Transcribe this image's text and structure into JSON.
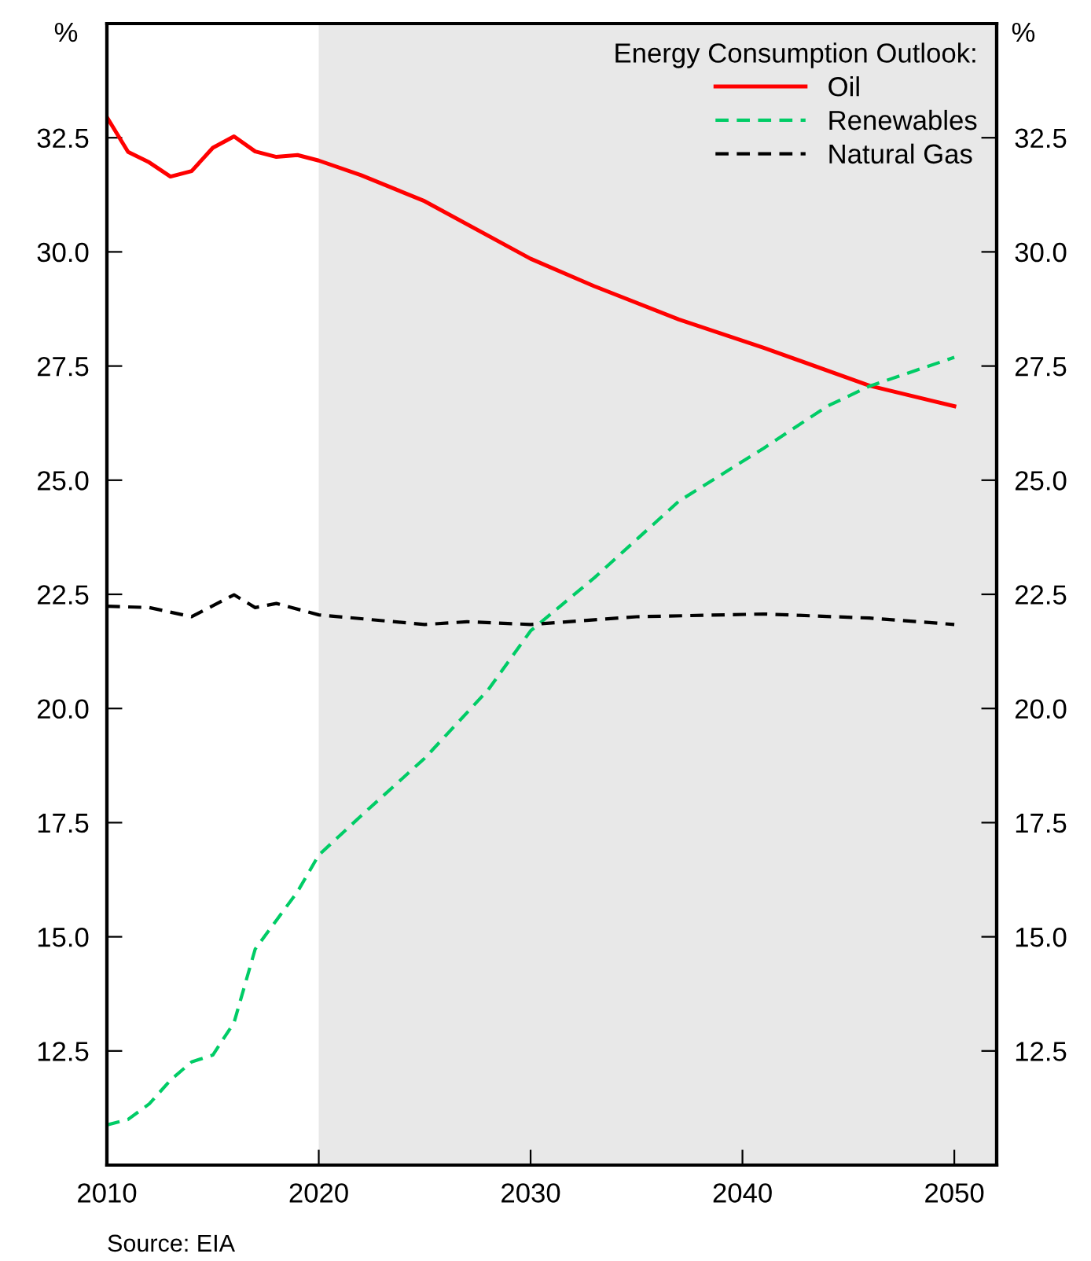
{
  "chart_data": {
    "type": "line",
    "ylabel": "%",
    "y2label": "%",
    "legend_title": "Energy Consumption Outlook:",
    "series": [
      {
        "name": "Oil",
        "color": "#ff0000",
        "line_style": "solid",
        "x": [
          2010,
          2011,
          2012,
          2013,
          2014,
          2015,
          2016,
          2017,
          2018,
          2019,
          2020,
          2022,
          2025,
          2030,
          2033,
          2037,
          2041,
          2046,
          2050
        ],
        "values": [
          32.95,
          32.19,
          31.96,
          31.65,
          31.77,
          32.28,
          32.53,
          32.2,
          32.08,
          32.12,
          32.0,
          31.68,
          31.11,
          29.85,
          29.25,
          28.52,
          27.9,
          27.07,
          26.62
        ]
      },
      {
        "name": "Renewables",
        "color": "#00cc66",
        "line_style": "dashed",
        "x": [
          2010,
          2011,
          2012,
          2013,
          2014,
          2015,
          2016,
          2017,
          2018,
          2019,
          2020,
          2022,
          2025,
          2028,
          2030,
          2033,
          2037,
          2041,
          2044,
          2046,
          2050
        ],
        "values": [
          10.88,
          11.0,
          11.34,
          11.86,
          12.26,
          12.41,
          13.12,
          14.73,
          15.36,
          15.99,
          16.79,
          17.65,
          18.91,
          20.41,
          21.7,
          22.86,
          24.54,
          25.7,
          26.62,
          27.06,
          27.69
        ]
      },
      {
        "name": "Natural Gas",
        "color": "#000000",
        "line_style": "dashed",
        "x": [
          2010,
          2012,
          2014,
          2016,
          2017,
          2018,
          2020,
          2025,
          2027,
          2030,
          2035,
          2041,
          2046,
          2050
        ],
        "values": [
          22.24,
          22.21,
          22.01,
          22.49,
          22.21,
          22.3,
          22.05,
          21.84,
          21.9,
          21.84,
          22.01,
          22.07,
          21.98,
          21.84
        ]
      }
    ],
    "xlim": [
      2010,
      2052
    ],
    "xticks": [
      2010,
      2020,
      2030,
      2040,
      2050
    ],
    "ylim": [
      10,
      35
    ],
    "yticks": [
      12.5,
      {
        "value": 15,
        "label": "15.0"
      },
      17.5,
      {
        "value": 20,
        "label": "20.0"
      },
      22.5,
      {
        "value": 25,
        "label": "25.0"
      },
      27.5,
      {
        "value": 30,
        "label": "30.0"
      },
      32.5
    ],
    "y2lim": [
      10,
      35
    ],
    "y2ticks": [
      12.5,
      {
        "value": 15,
        "label": "15.0"
      },
      17.5,
      {
        "value": 20,
        "label": "20.0"
      },
      22.5,
      {
        "value": 25,
        "label": "25.0"
      },
      27.5,
      {
        "value": 30,
        "label": "30.0"
      },
      32.5
    ],
    "bands": [
      {
        "axis": "x",
        "from": 2020,
        "to": 2052,
        "color": "#e8e8e8"
      }
    ],
    "legend": "top right",
    "grid": false,
    "annotations": [
      "Source: EIA"
    ]
  }
}
